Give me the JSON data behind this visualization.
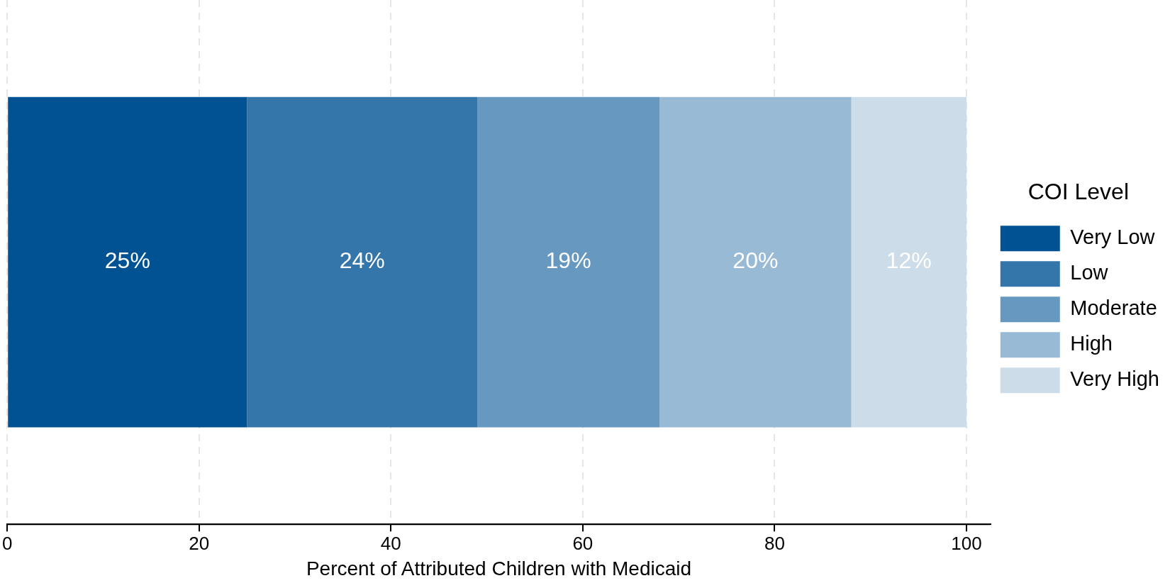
{
  "chart_data": {
    "type": "bar",
    "orientation": "horizontal",
    "stacked": true,
    "categories": [
      null
    ],
    "series": [
      {
        "name": "Very Low",
        "color": "#005293",
        "values": [
          25
        ],
        "value_labels": [
          "25%"
        ]
      },
      {
        "name": "Low",
        "color": "#3476aa",
        "values": [
          24
        ],
        "value_labels": [
          "24%"
        ]
      },
      {
        "name": "Moderate",
        "color": "#6798c0",
        "values": [
          19
        ],
        "value_labels": [
          "19%"
        ]
      },
      {
        "name": "High",
        "color": "#99bad5",
        "values": [
          20
        ],
        "value_labels": [
          "20%"
        ]
      },
      {
        "name": "Very High",
        "color": "#ccdde9",
        "values": [
          12
        ],
        "value_labels": [
          "12%"
        ]
      }
    ],
    "xlabel": "Percent of Attributed Children with Medicaid",
    "legend_title": "COI Level",
    "legend": "right",
    "xlim": [
      0,
      102.5
    ],
    "xticks": [
      0,
      20,
      40,
      60,
      80,
      100
    ],
    "grid": "x",
    "tick_labels": "x"
  }
}
